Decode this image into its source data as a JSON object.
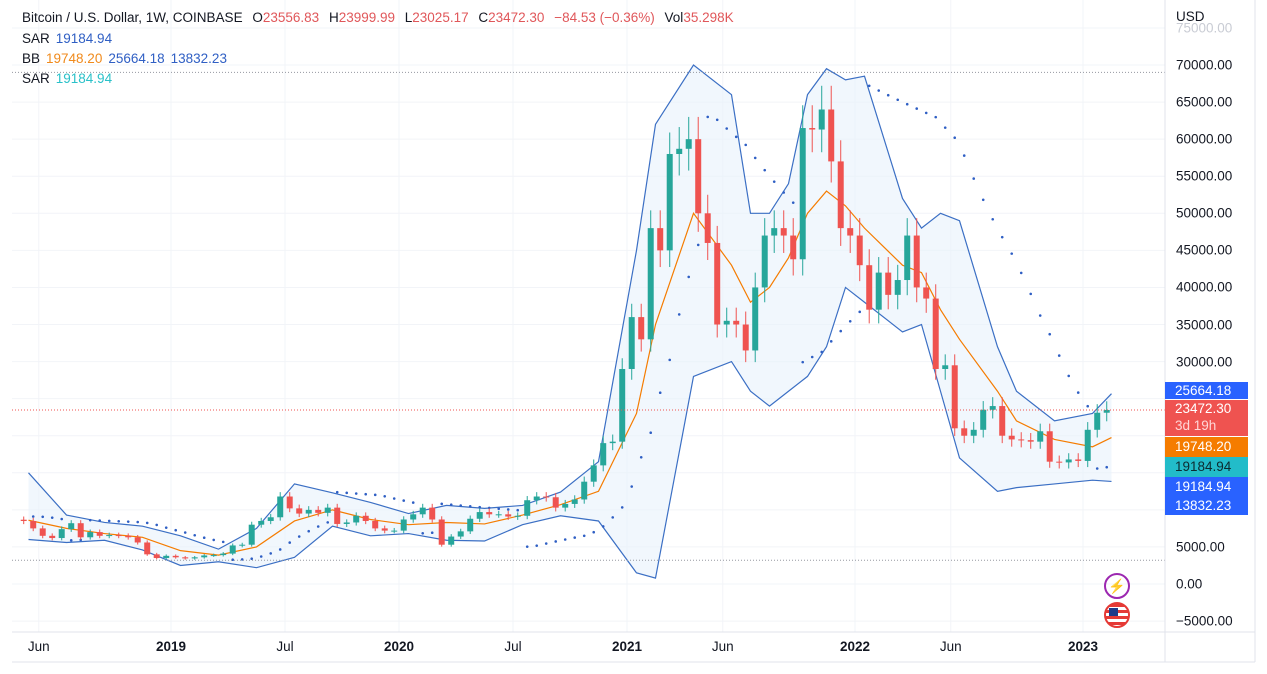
{
  "header": {
    "symbol": "Bitcoin / U.S. Dollar, 1W, COINBASE",
    "o_label": "O",
    "o": "23556.83",
    "h_label": "H",
    "h": "23999.99",
    "l_label": "L",
    "l": "23025.17",
    "c_label": "C",
    "c": "23472.30",
    "change": "−84.53 (−0.36%)",
    "vol_label": "Vol",
    "vol": "35.298K"
  },
  "indicators": {
    "sar1_label": "SAR",
    "sar1_value": "19184.94",
    "bb_label": "BB",
    "bb_mid": "19748.20",
    "bb_upper": "25664.18",
    "bb_lower": "13832.23",
    "sar2_label": "SAR",
    "sar2_value": "19184.94"
  },
  "price_axis": {
    "currency": "USD",
    "labels": [
      "75000.00",
      "70000.00",
      "65000.00",
      "60000.00",
      "55000.00",
      "50000.00",
      "45000.00",
      "40000.00",
      "35000.00",
      "30000.00",
      "5000.00",
      "0.00",
      "−5000.00"
    ],
    "label_values": [
      75000,
      70000,
      65000,
      60000,
      55000,
      50000,
      45000,
      40000,
      35000,
      30000,
      5000,
      0,
      -5000
    ]
  },
  "badges": {
    "bb_upper": "25664.18",
    "price": "23472.30",
    "countdown": "3d 19h",
    "bb_mid": "19748.20",
    "sar": "19184.94",
    "sar2": "19184.94",
    "bb_lower": "13832.23"
  },
  "time_axis": {
    "labels": [
      "Jun",
      "2019",
      "Jul",
      "2020",
      "Jul",
      "2021",
      "Jun",
      "2022",
      "Jun",
      "2023"
    ],
    "times": [
      2018.42,
      2019,
      2019.5,
      2020,
      2020.5,
      2021,
      2021.42,
      2022,
      2022.42,
      2023
    ],
    "bold": [
      false,
      true,
      false,
      true,
      false,
      true,
      false,
      true,
      false,
      true
    ]
  },
  "icons": [
    "lightning-icon",
    "us-flag-icon"
  ],
  "colors": {
    "up": "#26a69a",
    "down": "#ef5350",
    "bb_band": "#3b6fc4",
    "bb_mid": "#f57c00",
    "sar1": "#2f5fc4",
    "price_line": "#ef5350",
    "bb_fill": "#e8f1fb"
  },
  "chart_data": {
    "type": "candlestick",
    "title": "Bitcoin / U.S. Dollar, 1W, COINBASE",
    "ylim": [
      -5000,
      75000
    ],
    "x_start": 2018.354,
    "x_step_years": 0.041667,
    "close": [
      8500,
      7500,
      6500,
      6200,
      7400,
      8200,
      6300,
      7000,
      6500,
      6600,
      6500,
      6300,
      5600,
      4000,
      3500,
      3800,
      3600,
      3450,
      3600,
      3850,
      3900,
      4100,
      5200,
      5300,
      8000,
      8500,
      9000,
      11800,
      10200,
      9500,
      10000,
      9600,
      10300,
      8100,
      8300,
      9200,
      8500,
      7500,
      7200,
      7200,
      8700,
      9400,
      10300,
      8700,
      5300,
      6400,
      7100,
      8800,
      9700,
      9400,
      9400,
      9100,
      9200,
      11300,
      11800,
      11700,
      10300,
      10800,
      11400,
      13800,
      16000,
      19000,
      19200,
      29000,
      36000,
      33000,
      48000,
      45000,
      58000,
      58700,
      60000,
      50000,
      46000,
      35000,
      35500,
      35000,
      31500,
      40000,
      47000,
      48000,
      47000,
      43800,
      61500,
      61300,
      64000,
      57000,
      48000,
      47000,
      43000,
      37000,
      42000,
      39000,
      41000,
      47000,
      40000,
      38500,
      29000,
      29500,
      21000,
      20000,
      20800,
      23500,
      24000,
      20000,
      19500,
      19400,
      19200,
      20600,
      16500,
      16400,
      16800,
      16600,
      20800,
      23100,
      23472.3
    ],
    "bollinger": [
      {
        "date": "2018-05",
        "upper": 15000,
        "mid": 8600,
        "lower": 6000
      },
      {
        "date": "2018-07",
        "upper": 9300,
        "mid": 7500,
        "lower": 5600
      },
      {
        "date": "2018-09",
        "upper": 8300,
        "mid": 6800,
        "lower": 5900
      },
      {
        "date": "2018-11",
        "upper": 7800,
        "mid": 6300,
        "lower": 4600
      },
      {
        "date": "2019-01",
        "upper": 6500,
        "mid": 4500,
        "lower": 2500
      },
      {
        "date": "2019-03",
        "upper": 4700,
        "mid": 3900,
        "lower": 3000
      },
      {
        "date": "2019-05",
        "upper": 7500,
        "mid": 5000,
        "lower": 2200
      },
      {
        "date": "2019-07",
        "upper": 13500,
        "mid": 8500,
        "lower": 3600
      },
      {
        "date": "2019-09",
        "upper": 12300,
        "mid": 10000,
        "lower": 7800
      },
      {
        "date": "2019-11",
        "upper": 11000,
        "mid": 8700,
        "lower": 6500
      },
      {
        "date": "2020-01",
        "upper": 9500,
        "mid": 8000,
        "lower": 6800
      },
      {
        "date": "2020-03",
        "upper": 10600,
        "mid": 8300,
        "lower": 5900
      },
      {
        "date": "2020-05",
        "upper": 10200,
        "mid": 8100,
        "lower": 5800
      },
      {
        "date": "2020-07",
        "upper": 10600,
        "mid": 9300,
        "lower": 8000
      },
      {
        "date": "2020-09",
        "upper": 12400,
        "mid": 10700,
        "lower": 9200
      },
      {
        "date": "2020-11",
        "upper": 16500,
        "mid": 12500,
        "lower": 8500
      },
      {
        "date": "2021-01",
        "upper": 45000,
        "mid": 23000,
        "lower": 1500
      },
      {
        "date": "2021-02",
        "upper": 62000,
        "mid": 35000,
        "lower": 800
      },
      {
        "date": "2021-04",
        "upper": 70000,
        "mid": 50000,
        "lower": 28000
      },
      {
        "date": "2021-06",
        "upper": 66000,
        "mid": 43000,
        "lower": 30000
      },
      {
        "date": "2021-07",
        "upper": 50000,
        "mid": 38000,
        "lower": 26000
      },
      {
        "date": "2021-08",
        "upper": 50000,
        "mid": 40000,
        "lower": 24000
      },
      {
        "date": "2021-09",
        "upper": 54000,
        "mid": 44000,
        "lower": 26000
      },
      {
        "date": "2021-10",
        "upper": 66000,
        "mid": 50000,
        "lower": 28000
      },
      {
        "date": "2021-11",
        "upper": 69500,
        "mid": 53000,
        "lower": 32000
      },
      {
        "date": "2021-12",
        "upper": 68000,
        "mid": 51000,
        "lower": 40000
      },
      {
        "date": "2022-01",
        "upper": 68500,
        "mid": 48000,
        "lower": 38000
      },
      {
        "date": "2022-03",
        "upper": 52000,
        "mid": 43000,
        "lower": 34000
      },
      {
        "date": "2022-04",
        "upper": 48000,
        "mid": 42000,
        "lower": 35000
      },
      {
        "date": "2022-05",
        "upper": 50000,
        "mid": 37000,
        "lower": 26000
      },
      {
        "date": "2022-06",
        "upper": 49000,
        "mid": 33000,
        "lower": 17000
      },
      {
        "date": "2022-08",
        "upper": 32000,
        "mid": 26000,
        "lower": 12500
      },
      {
        "date": "2022-09",
        "upper": 26000,
        "mid": 22000,
        "lower": 13000
      },
      {
        "date": "2022-11",
        "upper": 22000,
        "mid": 19500,
        "lower": 13500
      },
      {
        "date": "2023-01",
        "upper": 23000,
        "mid": 18500,
        "lower": 14000
      },
      {
        "date": "2023-02",
        "upper": 25664.18,
        "mid": 19748.2,
        "lower": 13832.23
      }
    ],
    "reference_lines": [
      69000,
      3200
    ],
    "last_price": 23472.3
  }
}
